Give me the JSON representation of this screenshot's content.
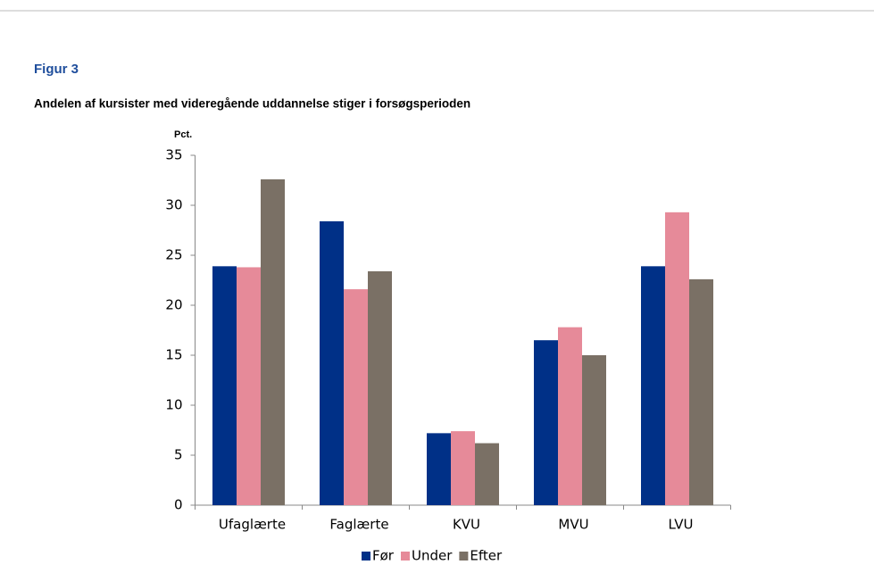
{
  "chart_data": {
    "type": "bar",
    "title": "Figur 3",
    "subtitle": "Andelen af kursister med videregående uddannelse stiger i forsøgsperioden",
    "y_label": "Pct.",
    "categories": [
      "Ufaglærte",
      "Faglærte",
      "KVU",
      "MVU",
      "LVU"
    ],
    "series": [
      {
        "name": "Før",
        "color": "#003087",
        "values": [
          23.9,
          28.4,
          7.2,
          16.5,
          23.9
        ]
      },
      {
        "name": "Under",
        "color": "#e68a99",
        "values": [
          23.8,
          21.6,
          7.4,
          17.8,
          29.3
        ]
      },
      {
        "name": "Efter",
        "color": "#7a7065",
        "values": [
          32.6,
          23.4,
          6.2,
          15.0,
          22.6
        ]
      }
    ],
    "ylim": [
      0,
      35
    ],
    "yticks": [
      0,
      5,
      10,
      15,
      20,
      25,
      30,
      35
    ],
    "grid": false,
    "legend": "bottom"
  }
}
